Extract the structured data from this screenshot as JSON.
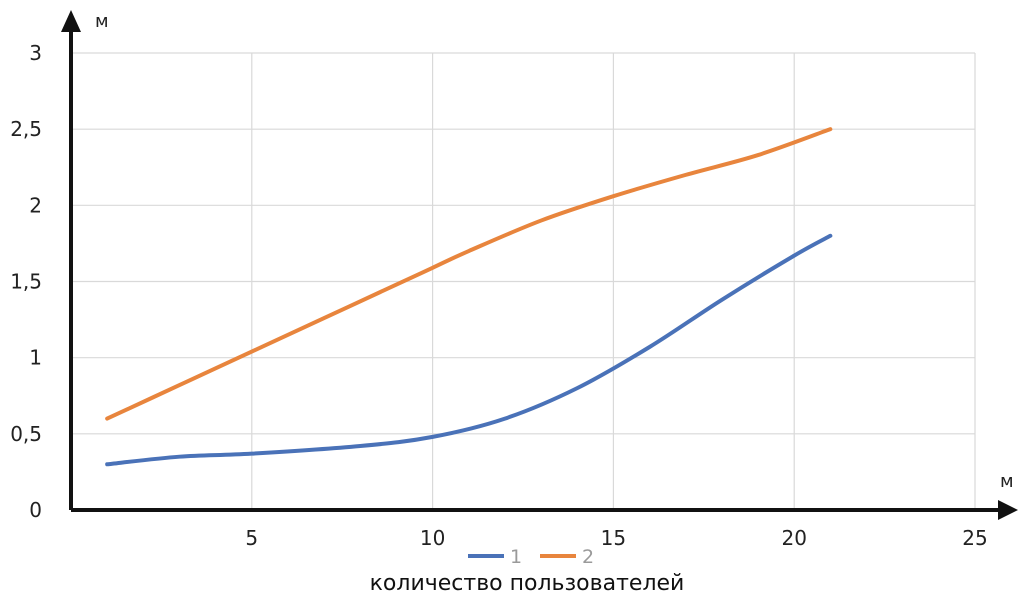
{
  "chart_data": {
    "type": "line",
    "title": "",
    "xlabel": "количество пользователей",
    "ylabel": "",
    "x_unit_label": "м",
    "y_unit_label": "м",
    "xlim": [
      0,
      25
    ],
    "ylim": [
      0,
      3
    ],
    "x_ticks": [
      5,
      10,
      15,
      20,
      25
    ],
    "x_tick_labels": [
      "5",
      "10",
      "15",
      "20",
      "25"
    ],
    "y_ticks": [
      0,
      0.5,
      1,
      1.5,
      2,
      2.5,
      3
    ],
    "y_tick_labels": [
      "0",
      "0,5",
      "1",
      "1,5",
      "2",
      "2,5",
      "3"
    ],
    "grid": true,
    "legend_position": "bottom",
    "series": [
      {
        "name": "1",
        "color": "#4a72b8",
        "x": [
          1,
          3,
          5,
          8,
          10,
          12,
          14,
          16,
          18,
          20,
          21
        ],
        "y": [
          0.3,
          0.35,
          0.37,
          0.42,
          0.48,
          0.6,
          0.8,
          1.07,
          1.38,
          1.67,
          1.8
        ]
      },
      {
        "name": "2",
        "color": "#e8853d",
        "x": [
          1,
          3,
          5,
          7,
          9,
          10,
          11,
          13,
          15,
          17,
          19,
          21
        ],
        "y": [
          0.6,
          0.82,
          1.04,
          1.26,
          1.48,
          1.59,
          1.7,
          1.9,
          2.06,
          2.2,
          2.33,
          2.5
        ]
      }
    ]
  }
}
